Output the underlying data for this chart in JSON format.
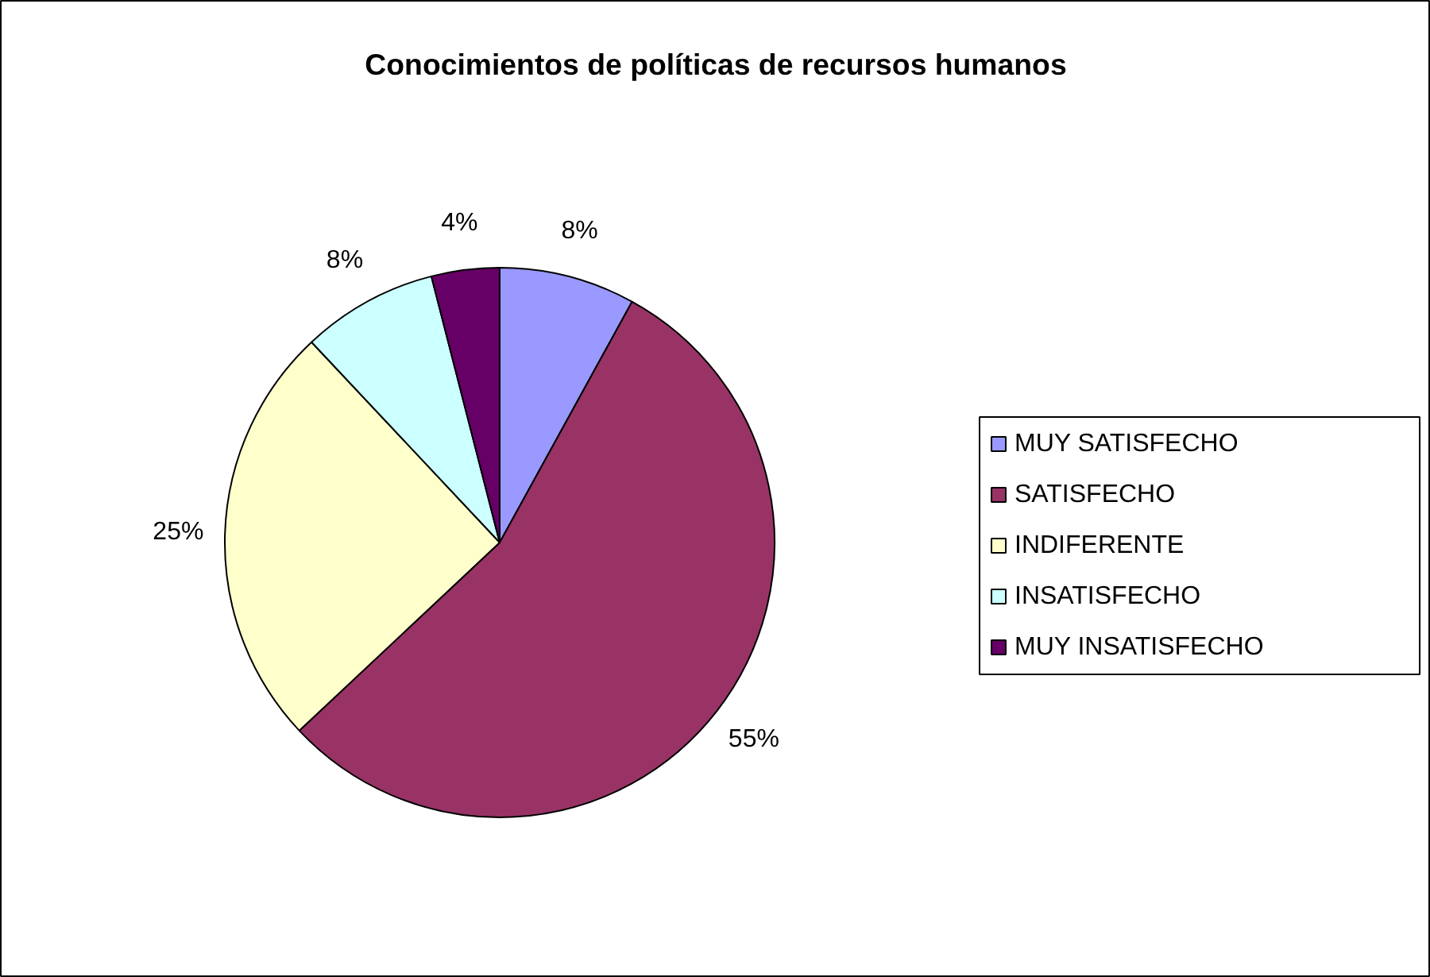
{
  "chart_data": {
    "type": "pie",
    "title": "Conocimientos de políticas de recursos humanos",
    "categories": [
      "MUY SATISFECHO",
      "SATISFECHO",
      "INDIFERENTE",
      "INSATISFECHO",
      "MUY INSATISFECHO"
    ],
    "values": [
      8,
      55,
      25,
      8,
      4
    ],
    "colors": [
      "#9999ff",
      "#993366",
      "#ffffcc",
      "#ccffff",
      "#660066"
    ],
    "value_labels": [
      "8%",
      "55%",
      "25%",
      "8%",
      "4%"
    ],
    "legend": "right"
  }
}
